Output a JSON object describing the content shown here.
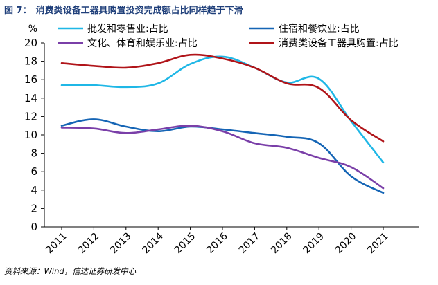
{
  "figure": {
    "label": "图 7：",
    "title": "消费类设备工器具购置投资完成额占比同样趋于下滑",
    "source": "资料来源：Wind，信达证券研发中心"
  },
  "chart_data": {
    "type": "line",
    "title": "消费类设备工器具购置投资完成额占比同样趋于下滑",
    "ylabel": "%",
    "xlabel": "",
    "ylim": [
      0,
      20
    ],
    "yticks": [
      0,
      2,
      4,
      6,
      8,
      10,
      12,
      14,
      16,
      18,
      20
    ],
    "categories": [
      "2011",
      "2012",
      "2013",
      "2014",
      "2015",
      "2016",
      "2017",
      "2018",
      "2019",
      "2020",
      "2021"
    ],
    "legend_position": "top",
    "grid": false,
    "series": [
      {
        "name": "批发和零售业:占比",
        "color": "#1fb7e6",
        "values": [
          15.4,
          15.4,
          15.2,
          15.6,
          17.7,
          18.5,
          17.3,
          15.7,
          16.1,
          11.5,
          7.0
        ]
      },
      {
        "name": "住宿和餐饮业:占比",
        "color": "#1565b5",
        "values": [
          11.0,
          11.7,
          10.9,
          10.4,
          10.9,
          10.6,
          10.2,
          9.8,
          9.1,
          5.5,
          3.7
        ]
      },
      {
        "name": "文化、体育和娱乐业:占比",
        "color": "#7a3fa8",
        "values": [
          10.8,
          10.7,
          10.2,
          10.6,
          11.0,
          10.4,
          9.1,
          8.6,
          7.5,
          6.5,
          4.2
        ]
      },
      {
        "name": "消费类设备工器具购置:占比",
        "color": "#b01419",
        "values": [
          17.8,
          17.5,
          17.3,
          17.8,
          18.7,
          18.3,
          17.3,
          15.6,
          15.1,
          11.6,
          9.3
        ]
      }
    ]
  }
}
